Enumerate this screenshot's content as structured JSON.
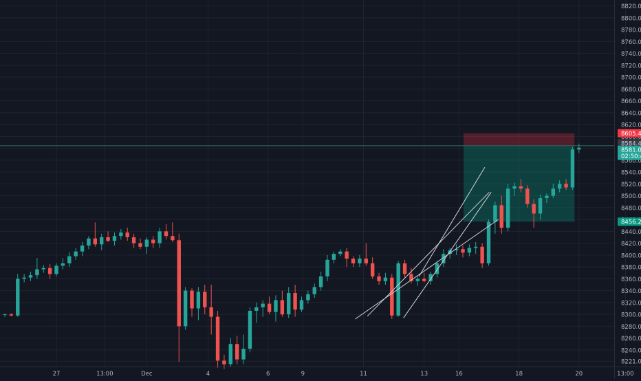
{
  "chart_data": {
    "type": "candlestick",
    "title": "",
    "xlabel": "",
    "ylabel": "",
    "ylim": [
      8212,
      8830
    ],
    "grid": true,
    "legend": "none",
    "y_ticks": [
      8221.0,
      8240.0,
      8260.0,
      8280.0,
      8300.0,
      8320.0,
      8340.0,
      8360.0,
      8380.0,
      8400.0,
      8420.0,
      8440.0,
      8460.0,
      8480.0,
      8500.0,
      8520.0,
      8540.0,
      8560.0,
      8580.0,
      8600.0,
      8620.0,
      8640.0,
      8660.0,
      8680.0,
      8700.0,
      8720.0,
      8740.0,
      8760.0,
      8780.0,
      8800.0,
      8820.0
    ],
    "x_ticks": [
      {
        "label": "27",
        "bar": 8
      },
      {
        "label": "13:00",
        "bar": 15.5
      },
      {
        "label": "Dec",
        "bar": 22
      },
      {
        "label": "4",
        "bar": 31.5
      },
      {
        "label": "6",
        "bar": 40.8
      },
      {
        "label": "9",
        "bar": 46.2
      },
      {
        "label": "11",
        "bar": 55.6
      },
      {
        "label": "13",
        "bar": 65
      },
      {
        "label": "16",
        "bar": 70.4
      },
      {
        "label": "18",
        "bar": 79.7
      },
      {
        "label": "20",
        "bar": 89
      },
      {
        "label": "13:00",
        "bar": 96.2
      }
    ],
    "candles": [
      [
        8299,
        8301,
        8296,
        8300
      ],
      [
        8300,
        8302,
        8297,
        8298
      ],
      [
        8298,
        8368,
        8296,
        8360
      ],
      [
        8360,
        8368,
        8354,
        8362
      ],
      [
        8362,
        8372,
        8356,
        8366
      ],
      [
        8366,
        8395,
        8360,
        8376
      ],
      [
        8376,
        8383,
        8370,
        8378
      ],
      [
        8378,
        8385,
        8360,
        8368
      ],
      [
        8368,
        8386,
        8364,
        8382
      ],
      [
        8382,
        8395,
        8376,
        8386
      ],
      [
        8386,
        8405,
        8380,
        8398
      ],
      [
        8398,
        8412,
        8392,
        8406
      ],
      [
        8406,
        8422,
        8398,
        8416
      ],
      [
        8416,
        8432,
        8410,
        8428
      ],
      [
        8428,
        8455,
        8414,
        8418
      ],
      [
        8418,
        8436,
        8408,
        8430
      ],
      [
        8430,
        8440,
        8422,
        8424
      ],
      [
        8424,
        8438,
        8416,
        8432
      ],
      [
        8432,
        8444,
        8426,
        8438
      ],
      [
        8438,
        8446,
        8424,
        8430
      ],
      [
        8430,
        8436,
        8412,
        8420
      ],
      [
        8420,
        8428,
        8410,
        8414
      ],
      [
        8414,
        8430,
        8402,
        8426
      ],
      [
        8426,
        8432,
        8412,
        8420
      ],
      [
        8420,
        8446,
        8412,
        8440
      ],
      [
        8440,
        8452,
        8426,
        8432
      ],
      [
        8432,
        8455,
        8422,
        8425
      ],
      [
        8425,
        8436,
        8220,
        8280
      ],
      [
        8280,
        8346,
        8274,
        8340
      ],
      [
        8340,
        8344,
        8296,
        8310
      ],
      [
        8310,
        8346,
        8290,
        8338
      ],
      [
        8338,
        8350,
        8300,
        8312
      ],
      [
        8312,
        8350,
        8266,
        8296
      ],
      [
        8296,
        8306,
        8210,
        8222
      ],
      [
        8222,
        8232,
        8208,
        8216
      ],
      [
        8216,
        8260,
        8212,
        8250
      ],
      [
        8250,
        8264,
        8216,
        8224
      ],
      [
        8224,
        8266,
        8216,
        8242
      ],
      [
        8242,
        8312,
        8236,
        8306
      ],
      [
        8306,
        8320,
        8286,
        8312
      ],
      [
        8312,
        8324,
        8296,
        8318
      ],
      [
        8318,
        8330,
        8300,
        8304
      ],
      [
        8304,
        8332,
        8288,
        8324
      ],
      [
        8324,
        8340,
        8296,
        8300
      ],
      [
        8300,
        8346,
        8294,
        8336
      ],
      [
        8336,
        8350,
        8296,
        8308
      ],
      [
        8308,
        8330,
        8304,
        8324
      ],
      [
        8324,
        8340,
        8318,
        8334
      ],
      [
        8334,
        8352,
        8328,
        8346
      ],
      [
        8346,
        8372,
        8340,
        8364
      ],
      [
        8364,
        8400,
        8356,
        8392
      ],
      [
        8392,
        8406,
        8386,
        8402
      ],
      [
        8402,
        8410,
        8398,
        8406
      ],
      [
        8406,
        8412,
        8380,
        8394
      ],
      [
        8394,
        8398,
        8380,
        8386
      ],
      [
        8386,
        8400,
        8380,
        8394
      ],
      [
        8394,
        8420,
        8382,
        8386
      ],
      [
        8386,
        8396,
        8360,
        8364
      ],
      [
        8364,
        8370,
        8350,
        8356
      ],
      [
        8356,
        8370,
        8350,
        8362
      ],
      [
        8362,
        8368,
        8292,
        8298
      ],
      [
        8298,
        8390,
        8296,
        8386
      ],
      [
        8386,
        8392,
        8362,
        8368
      ],
      [
        8368,
        8378,
        8352,
        8356
      ],
      [
        8356,
        8364,
        8348,
        8360
      ],
      [
        8360,
        8370,
        8354,
        8356
      ],
      [
        8356,
        8372,
        8350,
        8368
      ],
      [
        8368,
        8390,
        8362,
        8386
      ],
      [
        8386,
        8410,
        8380,
        8402
      ],
      [
        8402,
        8412,
        8394,
        8408
      ],
      [
        8408,
        8418,
        8400,
        8410
      ],
      [
        8410,
        8416,
        8396,
        8404
      ],
      [
        8404,
        8418,
        8398,
        8412
      ],
      [
        8412,
        8422,
        8402,
        8414
      ],
      [
        8414,
        8420,
        8378,
        8386
      ],
      [
        8386,
        8460,
        8382,
        8456
      ],
      [
        8456,
        8490,
        8436,
        8484
      ],
      [
        8484,
        8500,
        8436,
        8446
      ],
      [
        8446,
        8520,
        8440,
        8512
      ],
      [
        8512,
        8522,
        8500,
        8516
      ],
      [
        8516,
        8528,
        8506,
        8512
      ],
      [
        8512,
        8518,
        8480,
        8486
      ],
      [
        8486,
        8494,
        8446,
        8470
      ],
      [
        8470,
        8502,
        8460,
        8496
      ],
      [
        8496,
        8504,
        8488,
        8500
      ],
      [
        8500,
        8520,
        8496,
        8512
      ],
      [
        8512,
        8526,
        8506,
        8520
      ],
      [
        8520,
        8528,
        8510,
        8514
      ],
      [
        8514,
        8582,
        8510,
        8578
      ],
      [
        8578,
        8588,
        8572,
        8581
      ]
    ],
    "trend_lines": [
      {
        "from": {
          "bar": 54.3,
          "price": 8292
        },
        "to": {
          "bar": 76.5,
          "price": 8460
        }
      },
      {
        "from": {
          "bar": 56.2,
          "price": 8297
        },
        "to": {
          "bar": 75.1,
          "price": 8506
        }
      },
      {
        "from": {
          "bar": 64.2,
          "price": 8364
        },
        "to": {
          "bar": 74.4,
          "price": 8548
        }
      },
      {
        "from": {
          "bar": 61.8,
          "price": 8294
        },
        "to": {
          "bar": 75.4,
          "price": 8506
        }
      }
    ],
    "position": {
      "from_bar": 71.1,
      "to_bar": 88.3,
      "stop": 8605.4,
      "entry": 8584.4,
      "target": 8456.2
    },
    "price_labels": [
      {
        "value": "8605.4",
        "price": 8605.4,
        "bg": "#f23645",
        "fg": "#ffffff"
      },
      {
        "value": "8584.4",
        "price": 8588.6,
        "bg": "#363a45",
        "fg": "#d1d4dc"
      },
      {
        "value": "8581.0",
        "price": 8577.4,
        "bg": "#26a69a",
        "fg": "#ffffff"
      },
      {
        "value": "02:50:43",
        "price": 8567.2,
        "bg": "#26a69a",
        "fg": "#ffffff"
      },
      {
        "value": "8456.2",
        "price": 8456.2,
        "bg": "#089981",
        "fg": "#ffffff"
      }
    ],
    "colors": {
      "background": "#131722",
      "grid": "#1f2430",
      "up": "#26a69a",
      "down": "#ef5350",
      "axis_text": "#b2b5be",
      "stop_zone": "rgba(242,54,69,0.28)",
      "target_zone": "rgba(8,153,129,0.32)",
      "trend_line": "#d1d4dc"
    }
  }
}
